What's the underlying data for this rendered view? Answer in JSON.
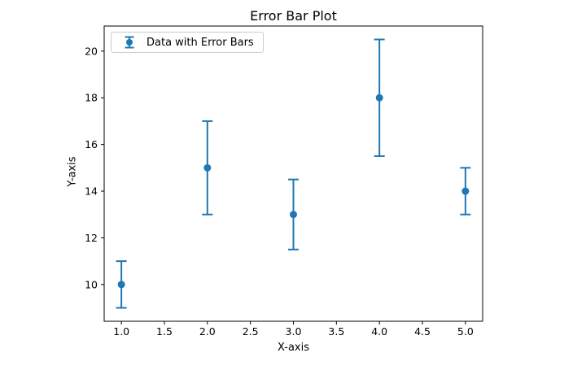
{
  "chart_data": {
    "type": "scatter",
    "title": "Error Bar Plot",
    "xlabel": "X-axis",
    "ylabel": "Y-axis",
    "series": [
      {
        "name": "Data with Error Bars",
        "x": [
          1,
          2,
          3,
          4,
          5
        ],
        "y": [
          10,
          15,
          13,
          18,
          14
        ],
        "yerr": [
          1.0,
          2.0,
          1.5,
          2.5,
          1.0
        ],
        "color": "#1f77b4",
        "marker": "circle",
        "capsize": 5
      }
    ],
    "xlim": [
      0.8,
      5.2
    ],
    "ylim": [
      8.425,
      21.075
    ],
    "xticks": [
      1.0,
      1.5,
      2.0,
      2.5,
      3.0,
      3.5,
      4.0,
      4.5,
      5.0
    ],
    "xtick_labels": [
      "1.0",
      "1.5",
      "2.0",
      "2.5",
      "3.0",
      "3.5",
      "4.0",
      "4.5",
      "5.0"
    ],
    "yticks": [
      10,
      12,
      14,
      16,
      18,
      20
    ],
    "ytick_labels": [
      "10",
      "12",
      "14",
      "16",
      "18",
      "20"
    ],
    "grid": false,
    "legend_position": "upper left",
    "axis_color": "#000000",
    "text_color": "#000000"
  }
}
